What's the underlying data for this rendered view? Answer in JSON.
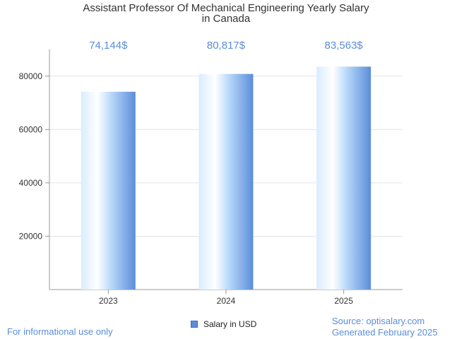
{
  "chart_data": {
    "type": "bar",
    "title_lines": [
      "Assistant Professor Of Mechanical Engineering Yearly Salary",
      "in Canada"
    ],
    "categories": [
      "2023",
      "2024",
      "2025"
    ],
    "series": [
      {
        "name": "Salary in USD",
        "values": [
          74144,
          80817,
          83563
        ]
      }
    ],
    "data_labels": [
      "74,144$",
      "80,817$",
      "83,563$"
    ],
    "y_ticks": [
      20000,
      40000,
      60000,
      80000
    ],
    "ylim": [
      0,
      90000
    ],
    "grid": true,
    "legend_position": "bottom-center",
    "colors": {
      "bar_light": "#ffffff",
      "bar_mid": "#a9cffb",
      "bar_dark": "#5b8dd9",
      "label": "#5b8dd9"
    }
  },
  "footer": {
    "left": "For informational use only",
    "source": "Source: optisalary.com",
    "generated": "Generated February 2025"
  }
}
